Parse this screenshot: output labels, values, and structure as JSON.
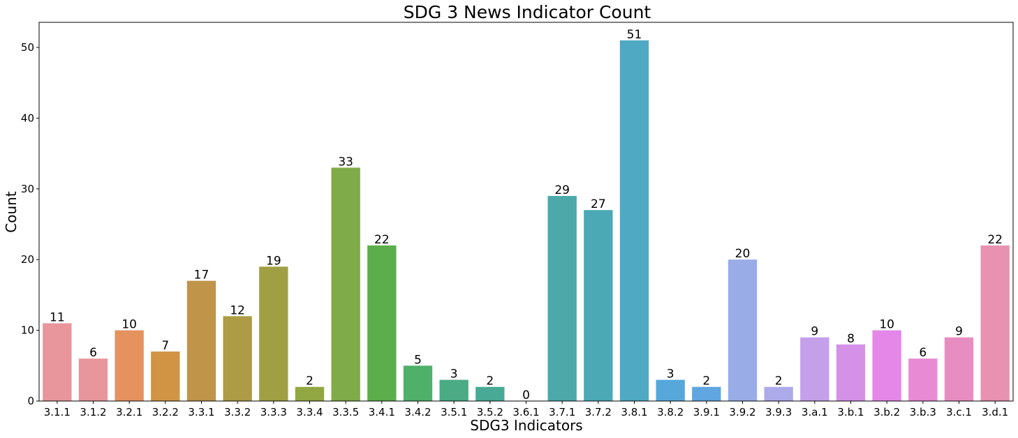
{
  "chart_data": {
    "type": "bar",
    "title": "SDG 3 News Indicator Count",
    "xlabel": "SDG3 Indicators",
    "ylabel": "Count",
    "ylim": [
      0,
      53.55
    ],
    "yticks": [
      0,
      10,
      20,
      30,
      40,
      50
    ],
    "grid": false,
    "categories": [
      "3.1.1",
      "3.1.2",
      "3.2.1",
      "3.2.2",
      "3.3.1",
      "3.3.2",
      "3.3.3",
      "3.3.4",
      "3.3.5",
      "3.4.1",
      "3.4.2",
      "3.5.1",
      "3.5.2",
      "3.6.1",
      "3.7.1",
      "3.7.2",
      "3.8.1",
      "3.8.2",
      "3.9.1",
      "3.9.2",
      "3.9.3",
      "3.a.1",
      "3.b.1",
      "3.b.2",
      "3.b.3",
      "3.c.1",
      "3.d.1"
    ],
    "values": [
      11,
      6,
      10,
      7,
      17,
      12,
      19,
      2,
      33,
      22,
      5,
      3,
      2,
      0,
      29,
      27,
      51,
      3,
      2,
      20,
      2,
      9,
      8,
      10,
      6,
      9,
      22
    ],
    "colors": [
      "#e8969b",
      "#e8969b",
      "#e6925f",
      "#d19445",
      "#c0954a",
      "#ad9b46",
      "#a09f43",
      "#91a742",
      "#7fab48",
      "#5bae4b",
      "#4fb06a",
      "#4aab85",
      "#48aa95",
      "#4aaaa2",
      "#4ba9aa",
      "#4aa9b4",
      "#4fa9c3",
      "#56a8da",
      "#60a6e0",
      "#99ace8",
      "#adaaea",
      "#c49fea",
      "#d591e8",
      "#e487e8",
      "#e88ad4",
      "#e88dc1",
      "#e891b1"
    ]
  }
}
